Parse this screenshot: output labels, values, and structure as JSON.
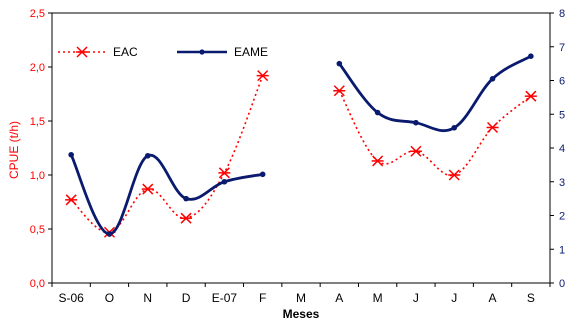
{
  "chart_data": {
    "type": "line",
    "categories": [
      "S-06",
      "O",
      "N",
      "D",
      "E-07",
      "F",
      "M",
      "A",
      "M",
      "J",
      "J",
      "A",
      "S"
    ],
    "xlabel": "Meses",
    "ylabel_left": "CPUE (t/h)",
    "ylim_left": [
      0,
      2.5
    ],
    "yticks_left": [
      "0,0",
      "0,5",
      "1,0",
      "1,5",
      "2,0",
      "2,5"
    ],
    "ylim_right": [
      0,
      8
    ],
    "yticks_right": [
      "0",
      "1",
      "2",
      "3",
      "4",
      "5",
      "6",
      "7",
      "8"
    ],
    "legend_position": "top-left",
    "series": [
      {
        "name": "EAC",
        "axis": "left",
        "color": "#ff0000",
        "style": "dotted-with-asterisks",
        "values": [
          0.77,
          0.47,
          0.87,
          0.6,
          1.02,
          1.92,
          null,
          1.78,
          1.13,
          1.22,
          1.0,
          1.44,
          1.73
        ]
      },
      {
        "name": "EAME",
        "axis": "right",
        "color": "#0a1a6e",
        "style": "solid-with-dots",
        "values": [
          3.8,
          1.45,
          3.77,
          2.5,
          3.0,
          3.22,
          null,
          6.5,
          5.05,
          4.75,
          4.6,
          6.05,
          6.72
        ]
      }
    ]
  }
}
